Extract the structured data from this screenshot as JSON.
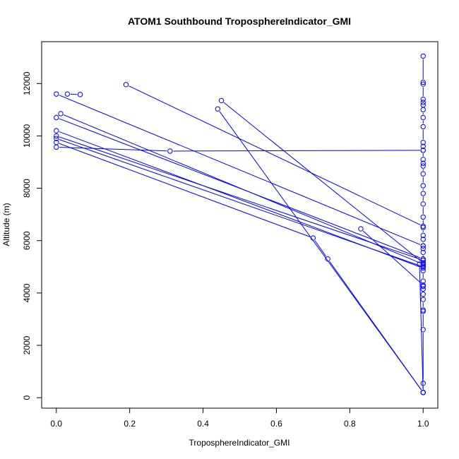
{
  "chart_data": {
    "type": "line",
    "title": "ATOM1 Southbound TroposphereIndicator_GMI",
    "xlabel": "TroposphereIndicator_GMI",
    "ylabel": "Altitude (m)",
    "xlim": [
      -0.04,
      1.04
    ],
    "ylim": [
      -400,
      13600
    ],
    "xticks": [
      0.0,
      0.2,
      0.4,
      0.6,
      0.8,
      1.0
    ],
    "xtick_labels": [
      "0.0",
      "0.2",
      "0.4",
      "0.6",
      "0.8",
      "1.0"
    ],
    "yticks": [
      0,
      2000,
      4000,
      6000,
      8000,
      10000,
      12000
    ],
    "ytick_labels": [
      "0",
      "2000",
      "4000",
      "6000",
      "8000",
      "10000",
      "12000"
    ],
    "grid": false,
    "legend": "none",
    "color": "#0000ff",
    "series": [
      {
        "x": [
          1.0,
          1.0,
          1.0,
          1.0,
          1.0,
          1.0,
          1.0,
          1.0,
          1.0,
          1.0,
          1.0,
          1.0,
          1.0,
          1.0,
          1.0,
          1.0,
          1.0,
          1.0,
          1.0,
          1.0,
          1.0,
          1.0,
          1.0,
          1.0,
          1.0,
          1.0,
          1.0,
          1.0,
          1.0,
          1.0,
          1.0,
          1.0,
          1.0,
          1.0,
          1.0,
          1.0,
          1.0,
          1.0,
          1.0,
          1.0
        ],
        "y": [
          13050,
          12050,
          11980,
          11400,
          11280,
          11180,
          11000,
          10700,
          10350,
          9750,
          9600,
          9450,
          9100,
          8950,
          8850,
          8550,
          8100,
          7800,
          7400,
          6900,
          6500,
          6200,
          6050,
          5800,
          5700,
          5550,
          5250,
          5150,
          5050,
          4850,
          4450,
          4250,
          4150,
          3950,
          3750,
          3350,
          3300,
          2600,
          550,
          200
        ]
      },
      {
        "x": [
          0.0,
          1.0
        ],
        "y": [
          11600,
          5800
        ]
      },
      {
        "x": [
          0.0,
          1.0
        ],
        "y": [
          10700,
          5300
        ]
      },
      {
        "x": [
          0.0,
          1.0
        ],
        "y": [
          10200,
          4950
        ]
      },
      {
        "x": [
          0.0,
          1.0
        ],
        "y": [
          10000,
          5250
        ]
      },
      {
        "x": [
          0.0,
          1.0
        ],
        "y": [
          9900,
          5000
        ]
      },
      {
        "x": [
          0.0,
          0.7,
          0.74,
          1.0
        ],
        "y": [
          9750,
          6100,
          5300,
          200
        ]
      },
      {
        "x": [
          0.0,
          0.31,
          1.0
        ],
        "y": [
          9570,
          9420,
          9450
        ]
      },
      {
        "x": [
          0.012,
          1.0
        ],
        "y": [
          10850,
          5100
        ]
      },
      {
        "x": [
          0.065,
          0.03
        ],
        "y": [
          11580,
          11600
        ]
      },
      {
        "x": [
          0.19,
          1.0
        ],
        "y": [
          11960,
          6550
        ]
      },
      {
        "x": [
          0.45,
          1.0
        ],
        "y": [
          11350,
          5150
        ]
      },
      {
        "x": [
          0.44,
          1.0
        ],
        "y": [
          11030,
          200
        ]
      },
      {
        "x": [
          0.83,
          1.0
        ],
        "y": [
          6450,
          4300
        ]
      },
      {
        "x": [
          0.99,
          1.0
        ],
        "y": [
          5100,
          200
        ]
      }
    ]
  }
}
